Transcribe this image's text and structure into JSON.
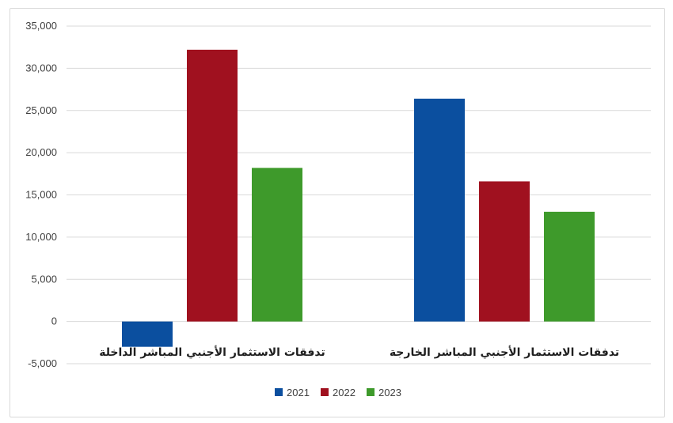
{
  "chart_data": {
    "type": "bar",
    "categories": [
      "تدفقات الاستثمار الأجنبي المباشر الداخلة",
      "تدفقات الاستثمار الأجنبي المباشر الخارجة"
    ],
    "series": [
      {
        "name": "2021",
        "values": [
          -3000,
          26400
        ],
        "color": "#0b4f9f"
      },
      {
        "name": "2022",
        "values": [
          32200,
          16600
        ],
        "color": "#a0111f"
      },
      {
        "name": "2023",
        "values": [
          18200,
          13000
        ],
        "color": "#3e9a2b"
      }
    ],
    "ylim": [
      -5000,
      35000
    ],
    "yticks": [
      -5000,
      0,
      5000,
      10000,
      15000,
      20000,
      25000,
      30000,
      35000
    ],
    "ytick_labels": [
      "-5,000",
      "0",
      "5,000",
      "10,000",
      "15,000",
      "20,000",
      "25,000",
      "30,000",
      "35,000"
    ],
    "grid": true,
    "legend_position": "bottom"
  }
}
